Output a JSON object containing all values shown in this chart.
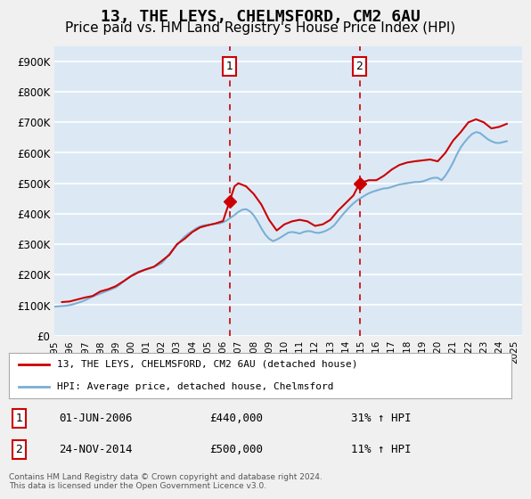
{
  "title": "13, THE LEYS, CHELMSFORD, CM2 6AU",
  "subtitle": "Price paid vs. HM Land Registry's House Price Index (HPI)",
  "title_fontsize": 13,
  "subtitle_fontsize": 11,
  "ylabel_ticks": [
    "£0",
    "£100K",
    "£200K",
    "£300K",
    "£400K",
    "£500K",
    "£600K",
    "£700K",
    "£800K",
    "£900K"
  ],
  "ytick_values": [
    0,
    100000,
    200000,
    300000,
    400000,
    500000,
    600000,
    700000,
    800000,
    900000
  ],
  "ylim": [
    0,
    950000
  ],
  "xlim_start": 1995.0,
  "xlim_end": 2025.5,
  "background_color": "#dce9f5",
  "plot_bg_color": "#dce9f5",
  "grid_color": "#ffffff",
  "line1_color": "#cc0000",
  "line2_color": "#7bafd4",
  "vline_color": "#cc0000",
  "purchase1_x": 2006.42,
  "purchase1_y": 440000,
  "purchase1_label": "1",
  "purchase2_x": 2014.9,
  "purchase2_y": 500000,
  "purchase2_label": "2",
  "legend_line1": "13, THE LEYS, CHELMSFORD, CM2 6AU (detached house)",
  "legend_line2": "HPI: Average price, detached house, Chelmsford",
  "table_rows": [
    {
      "num": "1",
      "date": "01-JUN-2006",
      "price": "£440,000",
      "hpi": "31% ↑ HPI"
    },
    {
      "num": "2",
      "date": "24-NOV-2014",
      "price": "£500,000",
      "hpi": "11% ↑ HPI"
    }
  ],
  "footer": "Contains HM Land Registry data © Crown copyright and database right 2024.\nThis data is licensed under the Open Government Licence v3.0.",
  "hpi_data_x": [
    1995.0,
    1995.25,
    1995.5,
    1995.75,
    1996.0,
    1996.25,
    1996.5,
    1996.75,
    1997.0,
    1997.25,
    1997.5,
    1997.75,
    1998.0,
    1998.25,
    1998.5,
    1998.75,
    1999.0,
    1999.25,
    1999.5,
    1999.75,
    2000.0,
    2000.25,
    2000.5,
    2000.75,
    2001.0,
    2001.25,
    2001.5,
    2001.75,
    2002.0,
    2002.25,
    2002.5,
    2002.75,
    2003.0,
    2003.25,
    2003.5,
    2003.75,
    2004.0,
    2004.25,
    2004.5,
    2004.75,
    2005.0,
    2005.25,
    2005.5,
    2005.75,
    2006.0,
    2006.25,
    2006.5,
    2006.75,
    2007.0,
    2007.25,
    2007.5,
    2007.75,
    2008.0,
    2008.25,
    2008.5,
    2008.75,
    2009.0,
    2009.25,
    2009.5,
    2009.75,
    2010.0,
    2010.25,
    2010.5,
    2010.75,
    2011.0,
    2011.25,
    2011.5,
    2011.75,
    2012.0,
    2012.25,
    2012.5,
    2012.75,
    2013.0,
    2013.25,
    2013.5,
    2013.75,
    2014.0,
    2014.25,
    2014.5,
    2014.75,
    2015.0,
    2015.25,
    2015.5,
    2015.75,
    2016.0,
    2016.25,
    2016.5,
    2016.75,
    2017.0,
    2017.25,
    2017.5,
    2017.75,
    2018.0,
    2018.25,
    2018.5,
    2018.75,
    2019.0,
    2019.25,
    2019.5,
    2019.75,
    2020.0,
    2020.25,
    2020.5,
    2020.75,
    2021.0,
    2021.25,
    2021.5,
    2021.75,
    2022.0,
    2022.25,
    2022.5,
    2022.75,
    2023.0,
    2023.25,
    2023.5,
    2023.75,
    2024.0,
    2024.25,
    2024.5
  ],
  "hpi_data_y": [
    95000,
    96000,
    97000,
    98000,
    100000,
    103000,
    107000,
    111000,
    116000,
    122000,
    128000,
    133000,
    138000,
    143000,
    148000,
    153000,
    158000,
    167000,
    177000,
    187000,
    196000,
    204000,
    210000,
    214000,
    217000,
    221000,
    226000,
    231000,
    238000,
    252000,
    268000,
    284000,
    298000,
    312000,
    325000,
    335000,
    343000,
    352000,
    358000,
    362000,
    363000,
    365000,
    367000,
    368000,
    372000,
    378000,
    387000,
    396000,
    406000,
    413000,
    415000,
    408000,
    395000,
    375000,
    352000,
    332000,
    318000,
    310000,
    315000,
    322000,
    330000,
    338000,
    340000,
    338000,
    335000,
    340000,
    343000,
    342000,
    338000,
    337000,
    340000,
    345000,
    352000,
    362000,
    378000,
    394000,
    408000,
    422000,
    434000,
    444000,
    452000,
    460000,
    467000,
    472000,
    476000,
    480000,
    483000,
    484000,
    488000,
    492000,
    496000,
    498000,
    500000,
    502000,
    504000,
    504000,
    506000,
    510000,
    515000,
    518000,
    518000,
    510000,
    525000,
    545000,
    568000,
    595000,
    618000,
    635000,
    650000,
    662000,
    668000,
    665000,
    655000,
    645000,
    638000,
    633000,
    632000,
    635000,
    638000
  ],
  "price_data_x": [
    1995.5,
    1996.0,
    1997.0,
    1997.5,
    1998.0,
    1998.5,
    1999.0,
    1999.5,
    2000.0,
    2000.5,
    2001.0,
    2001.5,
    2002.0,
    2002.5,
    2003.0,
    2003.5,
    2004.0,
    2004.5,
    2005.0,
    2005.5,
    2006.0,
    2006.42,
    2006.75,
    2007.0,
    2007.5,
    2008.0,
    2008.5,
    2009.0,
    2009.5,
    2010.0,
    2010.5,
    2011.0,
    2011.5,
    2012.0,
    2012.5,
    2013.0,
    2013.5,
    2014.0,
    2014.5,
    2014.9,
    2015.5,
    2016.0,
    2016.5,
    2017.0,
    2017.5,
    2018.0,
    2018.5,
    2019.0,
    2019.5,
    2020.0,
    2020.5,
    2021.0,
    2021.5,
    2022.0,
    2022.5,
    2023.0,
    2023.5,
    2024.0,
    2024.5
  ],
  "price_data_y": [
    110000,
    112000,
    125000,
    130000,
    145000,
    152000,
    162000,
    178000,
    195000,
    208000,
    218000,
    226000,
    245000,
    265000,
    300000,
    318000,
    340000,
    355000,
    362000,
    368000,
    376000,
    440000,
    490000,
    500000,
    490000,
    465000,
    430000,
    380000,
    345000,
    365000,
    375000,
    380000,
    375000,
    360000,
    365000,
    380000,
    410000,
    435000,
    460000,
    500000,
    510000,
    510000,
    525000,
    545000,
    560000,
    568000,
    572000,
    575000,
    578000,
    572000,
    600000,
    640000,
    668000,
    700000,
    710000,
    700000,
    680000,
    685000,
    695000
  ]
}
